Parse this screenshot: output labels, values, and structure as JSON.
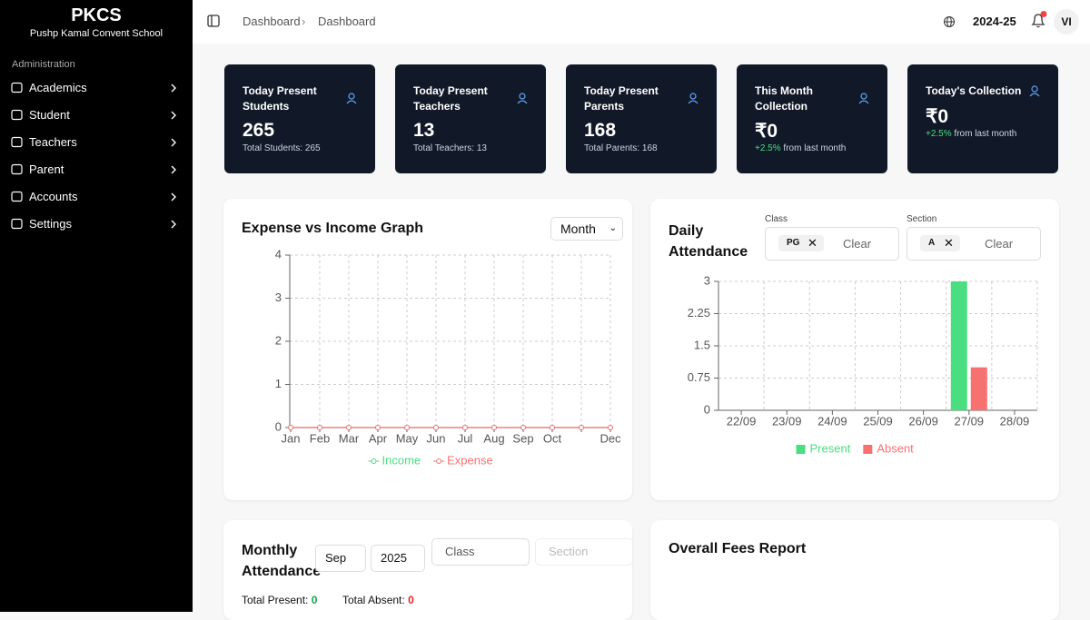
{
  "sidebar": {
    "brand": "PKCS",
    "school": "Pushp Kamal Convent School",
    "section": "Administration",
    "items": [
      "Academics",
      "Student",
      "Teachers",
      "Parent",
      "Accounts",
      "Settings"
    ]
  },
  "header": {
    "breadcrumb": [
      "Dashboard",
      "Dashboard"
    ],
    "session": "2024-25",
    "avatar": "VI"
  },
  "cards": [
    {
      "title": "Today Present Students",
      "value": "265",
      "note": "Total Students: 265"
    },
    {
      "title": "Today Present Teachers",
      "value": "13",
      "note": "Total Teachers: 13"
    },
    {
      "title": "Today Present Parents",
      "value": "168",
      "note": "Total Parents: 168"
    },
    {
      "title": "This Month Collection",
      "value": "₹0",
      "change": "+2.5%",
      "note": "from last month"
    },
    {
      "title": "Today's Collection",
      "value": "₹0",
      "change": "+2.5%",
      "note": "from last month"
    }
  ],
  "expense_filter": "Month",
  "attendance_filters": {
    "class_label": "Class",
    "class_chip": "PG",
    "class_clear": "Clear",
    "section_label": "Section",
    "section_chip": "A",
    "section_clear": "Clear"
  },
  "chart_data": [
    {
      "type": "line",
      "title": "Expense vs Income Graph",
      "categories": [
        "Jan",
        "Feb",
        "Mar",
        "Apr",
        "May",
        "Jun",
        "Jul",
        "Aug",
        "Sep",
        "Oct",
        null,
        "Dec"
      ],
      "series": [
        {
          "name": "Income",
          "color": "#4ade80",
          "values": [
            0,
            0,
            0,
            0,
            0,
            0,
            0,
            0,
            0,
            0,
            0,
            0
          ]
        },
        {
          "name": "Expense",
          "color": "#f87171",
          "values": [
            0,
            0,
            0,
            0,
            0,
            0,
            0,
            0,
            0,
            0,
            0,
            0
          ]
        }
      ],
      "ylim": [
        0,
        4
      ],
      "yticks": [
        0,
        1,
        2,
        3,
        4
      ],
      "grid": true
    },
    {
      "type": "bar",
      "title": "Daily Attendance",
      "categories": [
        "22/09",
        "23/09",
        "24/09",
        "25/09",
        "26/09",
        "27/09",
        "28/09"
      ],
      "series": [
        {
          "name": "Present",
          "color": "#4ade80",
          "values": [
            0,
            0,
            0,
            0,
            0,
            3,
            0
          ]
        },
        {
          "name": "Absent",
          "color": "#f87171",
          "values": [
            0,
            0,
            0,
            0,
            0,
            1,
            0
          ]
        }
      ],
      "ylim": [
        0,
        3
      ],
      "yticks": [
        0,
        0.75,
        1.5,
        2.25,
        3
      ],
      "grid": true
    }
  ],
  "monthly": {
    "title": "Monthly Attendance",
    "month": "Sep",
    "year": "2025",
    "class": "Class",
    "section": "Section",
    "present_label": "Total Present:",
    "present": 0,
    "absent_label": "Total Absent:",
    "absent": 0
  },
  "fees": {
    "title": "Overall Fees Report"
  }
}
